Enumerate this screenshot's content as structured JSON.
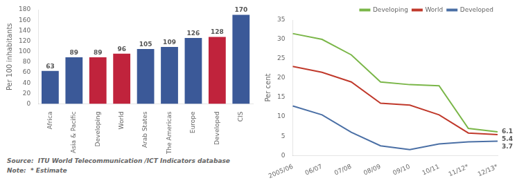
{
  "chart_data": [
    {
      "type": "bar",
      "categories": [
        "Africa",
        "Asia & Pacific",
        "Developing",
        "World",
        "Arab States",
        "The Americas",
        "Europe",
        "Developed",
        "CIS"
      ],
      "values": [
        63,
        89,
        89,
        96,
        105,
        109,
        126,
        128,
        170
      ],
      "colors": [
        "#3b5998",
        "#3b5998",
        "#c0233c",
        "#c0233c",
        "#3b5998",
        "#3b5998",
        "#3b5998",
        "#c0233c",
        "#3b5998"
      ],
      "y_label": "Per 100 inhabitants",
      "ylim": [
        0,
        180
      ],
      "yticks": [
        0,
        20,
        40,
        60,
        80,
        100,
        120,
        140,
        160,
        180
      ],
      "data_labels": true,
      "grid": false,
      "annotations": [
        "Source:  ITU World Telecommunication /ICT Indicators database",
        "Note:  * Estimate"
      ]
    },
    {
      "type": "line",
      "categories": [
        "2005/06",
        "06/07",
        "07/08",
        "08/09",
        "09/10",
        "10/11",
        "11/12*",
        "12/13*"
      ],
      "series": [
        {
          "name": "Developing",
          "color": "#7ab648",
          "values": [
            31.5,
            30.0,
            26.0,
            19.0,
            18.3,
            18.0,
            7.0,
            6.1
          ]
        },
        {
          "name": "World",
          "color": "#c0392b",
          "values": [
            23.0,
            21.5,
            19.0,
            13.5,
            13.0,
            10.5,
            5.8,
            5.4
          ]
        },
        {
          "name": "Developed",
          "color": "#4a6fa5",
          "values": [
            12.8,
            10.5,
            6.0,
            2.5,
            1.5,
            3.0,
            3.5,
            3.7
          ]
        }
      ],
      "y_label": "Per cent",
      "ylim": [
        0,
        35
      ],
      "yticks": [
        0,
        5,
        10,
        15,
        20,
        25,
        30,
        35
      ],
      "grid": false,
      "legend": "upper right",
      "annotations": [
        {
          "text": "6.1",
          "x": "12/13*",
          "y": 6.1
        },
        {
          "text": "5.4",
          "x": "12/13*",
          "y": 5.4
        },
        {
          "text": "3.7",
          "x": "12/13*",
          "y": 3.7
        }
      ]
    }
  ]
}
